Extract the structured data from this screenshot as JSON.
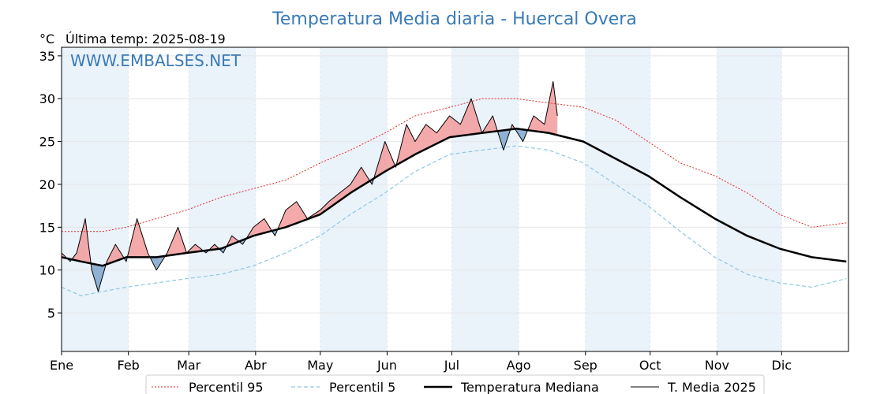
{
  "chart_data": {
    "type": "line",
    "title": "Temperatura Media diaria - Huercal Overa",
    "unit_label": "°C",
    "last_temp_label": "Última temp: 2025-08-19",
    "watermark": "WWW.EMBALSES.NET",
    "xlabel": "",
    "ylabel": "",
    "ylim": [
      0.5,
      36
    ],
    "y_ticks": [
      5,
      10,
      15,
      20,
      25,
      30,
      35
    ],
    "month_labels": [
      "Ene",
      "Feb",
      "Mar",
      "Abr",
      "May",
      "Jun",
      "Jul",
      "Ago",
      "Sep",
      "Oct",
      "Nov",
      "Dic"
    ],
    "month_start_days": [
      1,
      32,
      60,
      91,
      121,
      152,
      182,
      213,
      244,
      274,
      305,
      335
    ],
    "grid": true,
    "legend_position": "bottom",
    "colors": {
      "title": "#3a7ab8",
      "p95": "#e8262a",
      "p5": "#8ec8e0",
      "median": "#000000",
      "current": "#000000",
      "above_fill": "#f29b9b",
      "above_fill_strong": "#e04848",
      "below_fill": "#7fa6cc",
      "band": "#eaf2fa"
    },
    "series": [
      {
        "name": "Percentil 95",
        "style": "dotted",
        "x": [
          1,
          10,
          20,
          31,
          45,
          59,
          75,
          90,
          105,
          121,
          135,
          151,
          165,
          181,
          196,
          212,
          227,
          243,
          258,
          273,
          288,
          304,
          319,
          334,
          349,
          365
        ],
        "y": [
          14.5,
          14.5,
          14.5,
          15,
          16,
          17,
          18.5,
          19.5,
          20.5,
          22.5,
          24,
          26,
          28,
          29,
          30,
          30,
          29.5,
          29,
          27.5,
          25,
          22.5,
          21,
          19,
          16.5,
          15,
          15.5
        ]
      },
      {
        "name": "Percentil 5",
        "style": "dashed",
        "x": [
          1,
          10,
          20,
          31,
          45,
          59,
          75,
          90,
          105,
          121,
          135,
          151,
          165,
          181,
          196,
          212,
          227,
          243,
          258,
          273,
          288,
          304,
          319,
          334,
          349,
          365
        ],
        "y": [
          8,
          7,
          7.5,
          8,
          8.5,
          9,
          9.5,
          10.5,
          12,
          14,
          16.5,
          19,
          21.5,
          23.5,
          24,
          24.5,
          24,
          22.5,
          20,
          17.5,
          14.5,
          11.5,
          9.5,
          8.5,
          8,
          9
        ]
      },
      {
        "name": "Temperatura Mediana",
        "style": "solid",
        "x": [
          1,
          10,
          20,
          31,
          45,
          59,
          75,
          90,
          105,
          121,
          135,
          151,
          165,
          181,
          196,
          212,
          227,
          243,
          258,
          273,
          288,
          304,
          319,
          334,
          349,
          365
        ],
        "y": [
          11.5,
          11,
          10.5,
          11.5,
          11.5,
          12,
          12.5,
          14,
          15,
          16.5,
          19,
          21.5,
          23.5,
          25.5,
          26,
          26.5,
          26,
          25,
          23,
          21,
          18.5,
          16,
          14,
          12.5,
          11.5,
          11
        ]
      },
      {
        "name": "T. Media 2025",
        "style": "solid-thin",
        "x": [
          1,
          5,
          8,
          12,
          15,
          18,
          22,
          26,
          31,
          36,
          41,
          45,
          50,
          55,
          59,
          63,
          68,
          72,
          76,
          80,
          85,
          90,
          95,
          100,
          105,
          110,
          115,
          121,
          125,
          130,
          135,
          140,
          145,
          151,
          156,
          161,
          165,
          170,
          175,
          181,
          186,
          191,
          196,
          201,
          206,
          210,
          215,
          220,
          225,
          229,
          231
        ],
        "y": [
          12,
          11,
          12,
          16,
          10,
          7.5,
          11,
          13,
          11,
          16,
          12,
          10,
          12,
          15,
          12,
          13,
          12,
          13,
          12,
          14,
          13,
          15,
          16,
          14,
          17,
          18,
          16,
          17,
          18,
          19,
          20,
          22,
          20,
          25,
          22,
          27,
          25,
          27,
          26,
          28,
          27,
          30,
          26,
          28,
          24,
          27,
          25,
          28,
          27,
          32,
          28
        ]
      }
    ],
    "legend": [
      "Percentil 95",
      "Percentil 5",
      "Temperatura Mediana",
      "T. Media 2025"
    ]
  }
}
